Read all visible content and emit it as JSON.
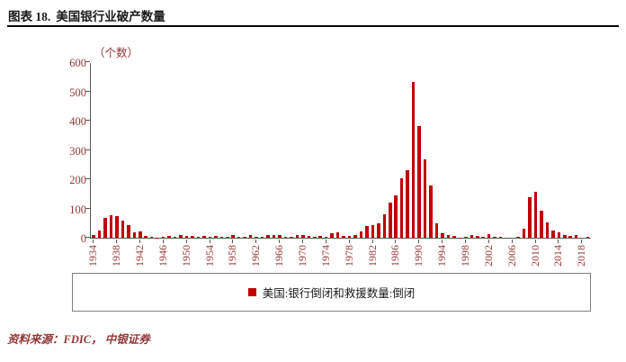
{
  "header": {
    "label": "图表 18.",
    "title": "美国银行业破产数量"
  },
  "chart_data": {
    "type": "bar",
    "title": "美国银行业破产数量",
    "y_unit": "（个数）",
    "xlabel": "",
    "ylabel": "",
    "ylim": [
      0,
      600
    ],
    "y_ticks": [
      0,
      100,
      200,
      300,
      400,
      500,
      600
    ],
    "grid": false,
    "legend_position": "bottom",
    "bar_color": "#c00000",
    "x_tick_years": [
      1934,
      1938,
      1942,
      1946,
      1950,
      1954,
      1958,
      1962,
      1966,
      1970,
      1974,
      1978,
      1982,
      1986,
      1990,
      1994,
      1998,
      2002,
      2006,
      2010,
      2014,
      2018
    ],
    "years": [
      1934,
      1935,
      1936,
      1937,
      1938,
      1939,
      1940,
      1941,
      1942,
      1943,
      1944,
      1945,
      1946,
      1947,
      1948,
      1949,
      1950,
      1951,
      1952,
      1953,
      1954,
      1955,
      1956,
      1957,
      1958,
      1959,
      1960,
      1961,
      1962,
      1963,
      1964,
      1965,
      1966,
      1967,
      1968,
      1969,
      1970,
      1971,
      1972,
      1973,
      1974,
      1975,
      1976,
      1977,
      1978,
      1979,
      1980,
      1981,
      1982,
      1983,
      1984,
      1985,
      1986,
      1987,
      1988,
      1989,
      1990,
      1991,
      1992,
      1993,
      1994,
      1995,
      1996,
      1997,
      1998,
      1999,
      2000,
      2001,
      2002,
      2003,
      2004,
      2005,
      2006,
      2007,
      2008,
      2009,
      2010,
      2011,
      2012,
      2013,
      2014,
      2015,
      2016,
      2017,
      2018,
      2019
    ],
    "values": [
      9,
      26,
      69,
      77,
      74,
      60,
      43,
      17,
      23,
      5,
      2,
      1,
      2,
      6,
      3,
      9,
      5,
      5,
      4,
      5,
      4,
      5,
      3,
      3,
      9,
      3,
      2,
      9,
      3,
      2,
      8,
      9,
      8,
      4,
      3,
      9,
      8,
      6,
      3,
      6,
      4,
      14,
      17,
      6,
      7,
      10,
      22,
      40,
      42,
      48,
      80,
      120,
      145,
      203,
      232,
      531,
      382,
      268,
      179,
      50,
      15,
      8,
      6,
      1,
      3,
      8,
      7,
      4,
      11,
      3,
      4,
      0,
      0,
      3,
      30,
      140,
      157,
      92,
      51,
      24,
      18,
      8,
      5,
      8,
      0,
      4
    ],
    "series": [
      {
        "name": "美国:银行倒闭和救援数量:倒闭"
      }
    ]
  },
  "legend": {
    "label": "美国:银行倒闭和救援数量:倒闭",
    "swatch_color": "#c00000"
  },
  "footer": {
    "source": "资料来源：FDIC， 中银证券"
  }
}
